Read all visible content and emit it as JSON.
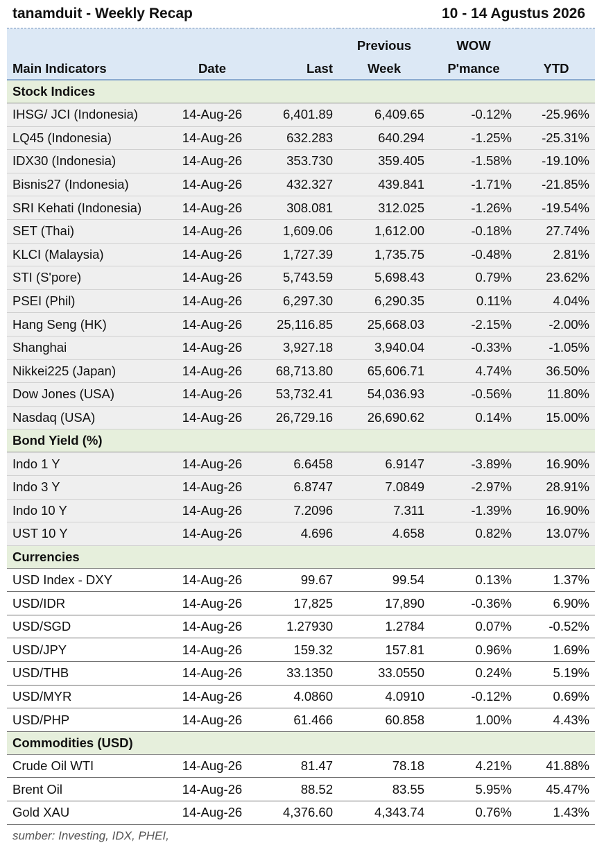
{
  "header": {
    "title": "tanamduit - Weekly Recap",
    "period": "10 - 14 Agustus 2026"
  },
  "columns": {
    "main": "Main Indicators",
    "date": "Date",
    "last": "Last",
    "prev_top": "Previous",
    "prev_bottom": "Week",
    "wow_top": "WOW",
    "wow_bottom": "P'mance",
    "ytd": "YTD"
  },
  "sections": [
    {
      "title": "Stock Indices",
      "rows": [
        {
          "name": "IHSG/ JCI (Indonesia)",
          "date": "14-Aug-26",
          "last": "6,401.89",
          "prev": "6,409.65",
          "wow": "-0.12%",
          "ytd": "-25.96%"
        },
        {
          "name": "LQ45 (Indonesia)",
          "date": "14-Aug-26",
          "last": "632.283",
          "prev": "640.294",
          "wow": "-1.25%",
          "ytd": "-25.31%"
        },
        {
          "name": "IDX30 (Indonesia)",
          "date": "14-Aug-26",
          "last": "353.730",
          "prev": "359.405",
          "wow": "-1.58%",
          "ytd": "-19.10%"
        },
        {
          "name": "Bisnis27 (Indonesia)",
          "date": "14-Aug-26",
          "last": "432.327",
          "prev": "439.841",
          "wow": "-1.71%",
          "ytd": "-21.85%"
        },
        {
          "name": "SRI Kehati (Indonesia)",
          "date": "14-Aug-26",
          "last": "308.081",
          "prev": "312.025",
          "wow": "-1.26%",
          "ytd": "-19.54%"
        },
        {
          "name": "SET (Thai)",
          "date": "14-Aug-26",
          "last": "1,609.06",
          "prev": "1,612.00",
          "wow": "-0.18%",
          "ytd": "27.74%"
        },
        {
          "name": "KLCI (Malaysia)",
          "date": "14-Aug-26",
          "last": "1,727.39",
          "prev": "1,735.75",
          "wow": "-0.48%",
          "ytd": "2.81%"
        },
        {
          "name": "STI (S'pore)",
          "date": "14-Aug-26",
          "last": "5,743.59",
          "prev": "5,698.43",
          "wow": "0.79%",
          "ytd": "23.62%"
        },
        {
          "name": "PSEI (Phil)",
          "date": "14-Aug-26",
          "last": "6,297.30",
          "prev": "6,290.35",
          "wow": "0.11%",
          "ytd": "4.04%"
        },
        {
          "name": "Hang Seng (HK)",
          "date": "14-Aug-26",
          "last": "25,116.85",
          "prev": "25,668.03",
          "wow": "-2.15%",
          "ytd": "-2.00%"
        },
        {
          "name": "Shanghai",
          "date": "14-Aug-26",
          "last": "3,927.18",
          "prev": "3,940.04",
          "wow": "-0.33%",
          "ytd": "-1.05%"
        },
        {
          "name": "Nikkei225 (Japan)",
          "date": "14-Aug-26",
          "last": "68,713.80",
          "prev": "65,606.71",
          "wow": "4.74%",
          "ytd": "36.50%"
        },
        {
          "name": "Dow Jones (USA)",
          "date": "14-Aug-26",
          "last": "53,732.41",
          "prev": "54,036.93",
          "wow": "-0.56%",
          "ytd": "11.80%"
        },
        {
          "name": "Nasdaq (USA)",
          "date": "14-Aug-26",
          "last": "26,729.16",
          "prev": "26,690.62",
          "wow": "0.14%",
          "ytd": "15.00%"
        }
      ]
    },
    {
      "title": "Bond Yield (%)",
      "rows": [
        {
          "name": "Indo 1 Y",
          "date": "14-Aug-26",
          "last": "6.6458",
          "prev": "6.9147",
          "wow": "-3.89%",
          "ytd": "16.90%"
        },
        {
          "name": "Indo 3 Y",
          "date": "14-Aug-26",
          "last": "6.8747",
          "prev": "7.0849",
          "wow": "-2.97%",
          "ytd": "28.91%"
        },
        {
          "name": "Indo 10 Y",
          "date": "14-Aug-26",
          "last": "7.2096",
          "prev": "7.311",
          "wow": "-1.39%",
          "ytd": "16.90%"
        },
        {
          "name": "UST 10 Y",
          "date": "14-Aug-26",
          "last": "4.696",
          "prev": "4.658",
          "wow": "0.82%",
          "ytd": "13.07%"
        }
      ]
    },
    {
      "title": "Currencies",
      "rows": [
        {
          "name": "USD Index - DXY",
          "date": "14-Aug-26",
          "last": "99.67",
          "prev": "99.54",
          "wow": "0.13%",
          "ytd": "1.37%"
        },
        {
          "name": "USD/IDR",
          "date": "14-Aug-26",
          "last": "17,825",
          "prev": "17,890",
          "wow": "-0.36%",
          "ytd": "6.90%"
        },
        {
          "name": "USD/SGD",
          "date": "14-Aug-26",
          "last": "1.27930",
          "prev": "1.2784",
          "wow": "0.07%",
          "ytd": "-0.52%"
        },
        {
          "name": "USD/JPY",
          "date": "14-Aug-26",
          "last": "159.32",
          "prev": "157.81",
          "wow": "0.96%",
          "ytd": "1.69%"
        },
        {
          "name": "USD/THB",
          "date": "14-Aug-26",
          "last": "33.1350",
          "prev": "33.0550",
          "wow": "0.24%",
          "ytd": "5.19%"
        },
        {
          "name": "USD/MYR",
          "date": "14-Aug-26",
          "last": "4.0860",
          "prev": "4.0910",
          "wow": "-0.12%",
          "ytd": "0.69%"
        },
        {
          "name": "USD/PHP",
          "date": "14-Aug-26",
          "last": "61.466",
          "prev": "60.858",
          "wow": "1.00%",
          "ytd": "4.43%"
        }
      ]
    },
    {
      "title": "Commodities (USD)",
      "rows": [
        {
          "name": "Crude Oil WTI",
          "date": "14-Aug-26",
          "last": "81.47",
          "prev": "78.18",
          "wow": "4.21%",
          "ytd": "41.88%"
        },
        {
          "name": "Brent Oil",
          "date": "14-Aug-26",
          "last": "88.52",
          "prev": "83.55",
          "wow": "5.95%",
          "ytd": "45.47%"
        },
        {
          "name": "Gold XAU",
          "date": "14-Aug-26",
          "last": "4,376.60",
          "prev": "4,343.74",
          "wow": "0.76%",
          "ytd": "1.43%"
        }
      ]
    }
  ],
  "footer": {
    "source": "sumber: Investing, IDX, PHEI,"
  },
  "colors": {
    "header_bg": "#dce8f5",
    "section_bg": "#e6efdc",
    "row_shade": "#efefef"
  }
}
